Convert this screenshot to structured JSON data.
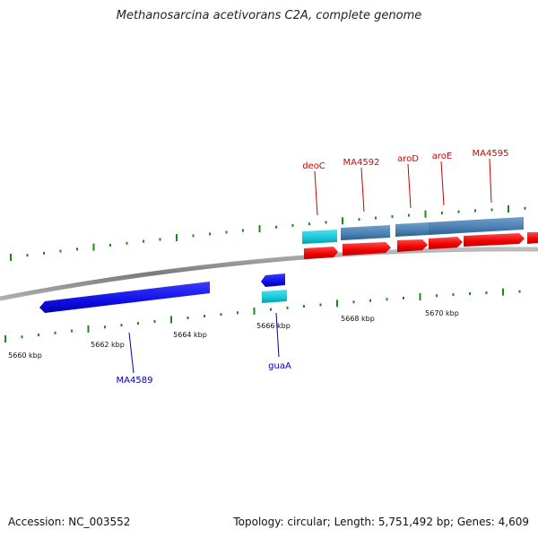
{
  "title": "Methanosarcina acetivorans C2A, complete genome",
  "footer": {
    "accession": "Accession: NC_003552",
    "meta": "Topology: circular; Length: 5,751,492 bp; Genes: 4,609"
  },
  "colors": {
    "backbone": "#8a8a8a",
    "forward_gene": "#ff1111",
    "reverse_gene": "#1a1aee",
    "forward_cds_feature": "#4f83b4",
    "rna_feature": "#1ec8d8",
    "forward_label": "#d40000",
    "reverse_label": "#0000aa",
    "gc_tick": "#1a8a1a"
  },
  "scale_labels": [
    {
      "kbp": 5660,
      "text": "5660 kbp"
    },
    {
      "kbp": 5662,
      "text": "5662 kbp"
    },
    {
      "kbp": 5664,
      "text": "5664 kbp"
    },
    {
      "kbp": 5666,
      "text": "5666 kbp"
    },
    {
      "kbp": 5668,
      "text": "5668 kbp"
    },
    {
      "kbp": 5670,
      "text": "5670 kbp"
    }
  ],
  "forward_genes": [
    {
      "label": "deoC"
    },
    {
      "label": "MA4592"
    },
    {
      "label": "aroD"
    },
    {
      "label": "aroE"
    },
    {
      "label": "MA4595"
    }
  ],
  "reverse_genes": [
    {
      "label": "MA4589"
    },
    {
      "label": "guaA"
    }
  ]
}
